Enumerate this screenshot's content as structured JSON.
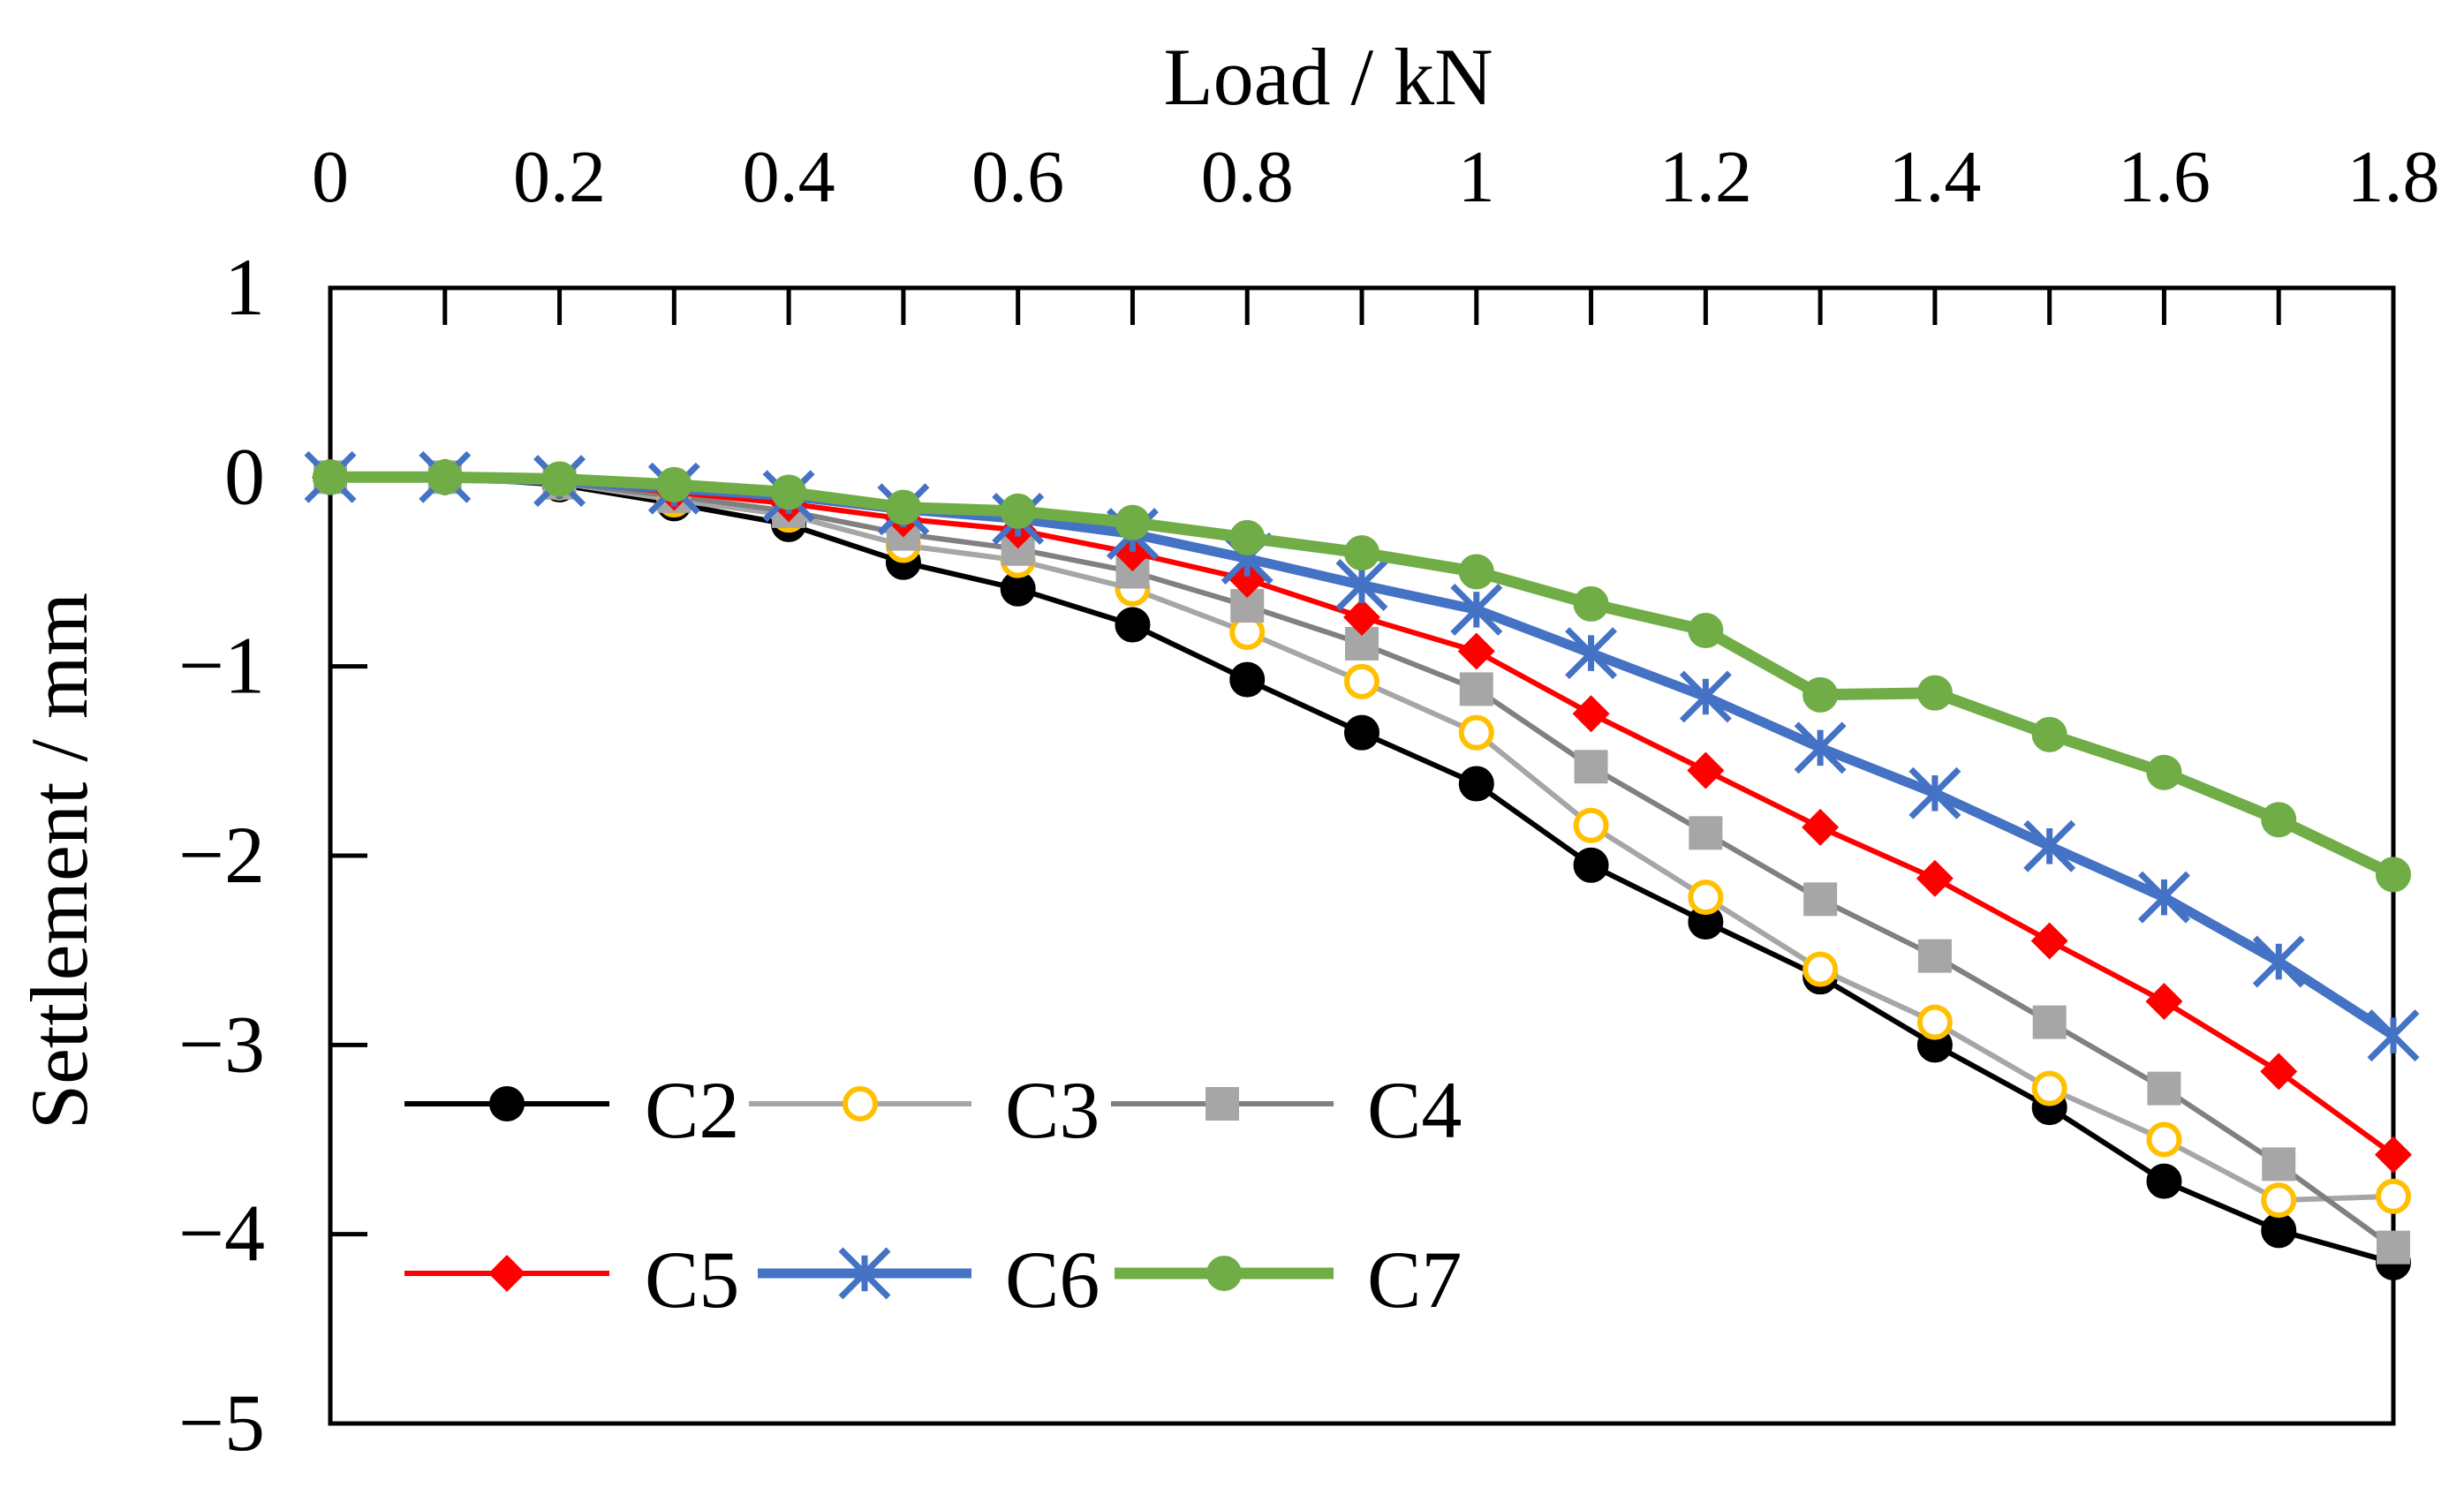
{
  "chart_data": {
    "type": "line",
    "title": "",
    "xlabel": "Load / kN",
    "ylabel": "Settlement / mm",
    "xlim": [
      0,
      1.8
    ],
    "ylim": [
      -5,
      1
    ],
    "x_ticks": [
      0,
      0.1,
      0.2,
      0.3,
      0.4,
      0.5,
      0.6,
      0.7,
      0.8,
      0.9,
      1.0,
      1.1,
      1.2,
      1.3,
      1.4,
      1.5,
      1.6,
      1.7,
      1.8
    ],
    "x_tick_labels": [
      "0",
      "0.2",
      "0.4",
      "0.6",
      "0.8",
      "1",
      "1.2",
      "1.4",
      "1.6",
      "1.8"
    ],
    "x_tick_label_values": [
      0,
      0.2,
      0.4,
      0.6,
      0.8,
      1.0,
      1.2,
      1.4,
      1.6,
      1.8
    ],
    "y_ticks": [
      1,
      0,
      -1,
      -2,
      -3,
      -4,
      -5
    ],
    "y_tick_labels": [
      "1",
      "0",
      "−1",
      "−2",
      "−3",
      "−4",
      "−5"
    ],
    "grid": false,
    "legend_position": "bottom-left inside",
    "x": [
      0,
      0.1,
      0.2,
      0.3,
      0.4,
      0.5,
      0.6,
      0.7,
      0.8,
      0.9,
      1.0,
      1.1,
      1.2,
      1.3,
      1.4,
      1.5,
      1.6,
      1.7,
      1.8
    ],
    "series": [
      {
        "name": "C2",
        "color": "#000000",
        "marker": "circle-filled",
        "values": [
          0,
          0,
          -0.04,
          -0.14,
          -0.25,
          -0.45,
          -0.59,
          -0.78,
          -1.07,
          -1.35,
          -1.62,
          -2.05,
          -2.35,
          -2.64,
          -3.0,
          -3.33,
          -3.72,
          -3.98,
          -4.15
        ]
      },
      {
        "name": "C3",
        "color": "#a6a6a6",
        "marker": "circle-open",
        "marker_color": "#ffc000",
        "values": [
          0,
          0,
          -0.03,
          -0.12,
          -0.2,
          -0.36,
          -0.44,
          -0.59,
          -0.82,
          -1.08,
          -1.35,
          -1.84,
          -2.22,
          -2.6,
          -2.88,
          -3.23,
          -3.5,
          -3.82,
          -3.8
        ]
      },
      {
        "name": "C4",
        "color": "#808080",
        "marker": "square",
        "marker_color": "#a6a6a6",
        "values": [
          0,
          0,
          -0.03,
          -0.1,
          -0.18,
          -0.3,
          -0.38,
          -0.5,
          -0.68,
          -0.88,
          -1.12,
          -1.53,
          -1.88,
          -2.23,
          -2.53,
          -2.88,
          -3.23,
          -3.63,
          -4.07
        ]
      },
      {
        "name": "C5",
        "color": "#ff0000",
        "marker": "diamond",
        "values": [
          0,
          0,
          -0.02,
          -0.08,
          -0.14,
          -0.22,
          -0.28,
          -0.4,
          -0.54,
          -0.74,
          -0.92,
          -1.25,
          -1.55,
          -1.85,
          -2.12,
          -2.45,
          -2.77,
          -3.14,
          -3.58
        ]
      },
      {
        "name": "C6",
        "color": "#4472c4",
        "marker": "asterisk",
        "values": [
          0,
          0,
          -0.02,
          -0.06,
          -0.1,
          -0.17,
          -0.22,
          -0.3,
          -0.43,
          -0.57,
          -0.7,
          -0.93,
          -1.16,
          -1.43,
          -1.67,
          -1.95,
          -2.22,
          -2.56,
          -2.95
        ]
      },
      {
        "name": "C7",
        "color": "#70ad47",
        "marker": "circle-filled",
        "values": [
          0,
          0,
          -0.01,
          -0.04,
          -0.08,
          -0.16,
          -0.18,
          -0.24,
          -0.32,
          -0.4,
          -0.5,
          -0.67,
          -0.81,
          -1.15,
          -1.14,
          -1.36,
          -1.56,
          -1.81,
          -2.1
        ]
      }
    ]
  }
}
